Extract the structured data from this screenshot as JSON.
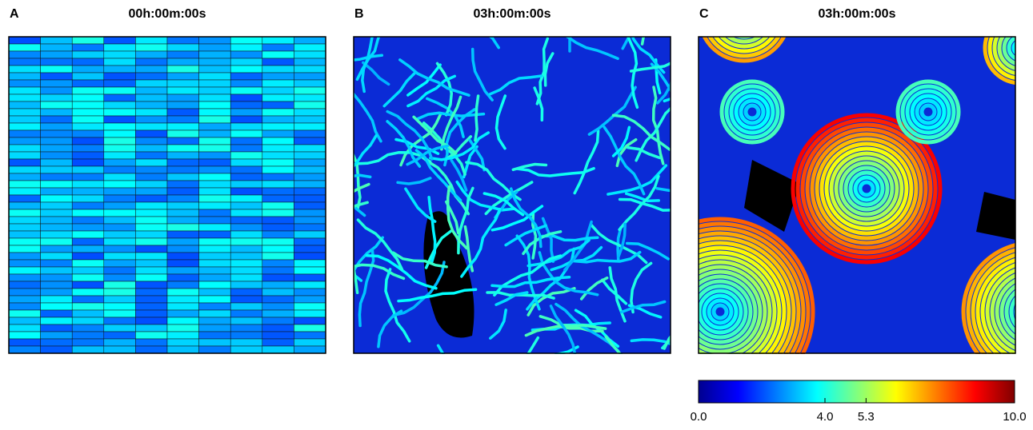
{
  "panels": [
    {
      "letter": "A",
      "title": "00h:00m:00s"
    },
    {
      "letter": "B",
      "title": "03h:00m:00s"
    },
    {
      "letter": "C",
      "title": "03h:00m:00s"
    }
  ],
  "colorbar": {
    "lim": [
      0,
      10
    ],
    "ticks": [
      {
        "value": 0,
        "label": "0.0"
      },
      {
        "value": 4,
        "label": "4.0"
      },
      {
        "value": 5.3,
        "label": "5.3"
      },
      {
        "value": 10,
        "label": "10.0"
      }
    ]
  }
}
